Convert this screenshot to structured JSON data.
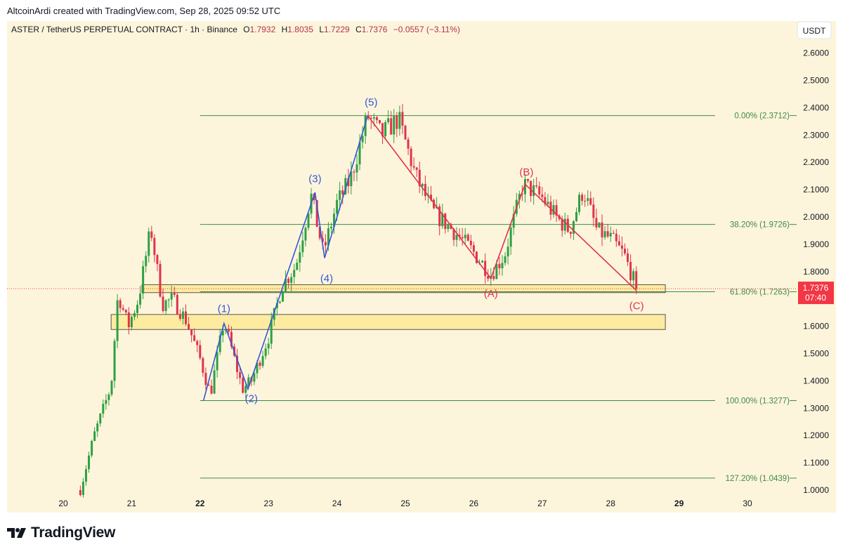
{
  "top_caption": "AltcoinArdi created with TradingView.com, Sep 28, 2025 09:52 UTC",
  "brand": "TradingView",
  "header": {
    "symbol": "ASTER / TetherUS PERPETUAL CONTRACT · 1h · Binance",
    "o_label": "O",
    "o": "1.7932",
    "h_label": "H",
    "h": "1.8035",
    "l_label": "L",
    "l": "1.7229",
    "c_label": "C",
    "c": "1.7376",
    "change": "−0.0557 (−3.11%)"
  },
  "currency_button": "USDT",
  "price_badge": {
    "price": "1.7376",
    "countdown": "07:40"
  },
  "colors": {
    "background": "#fdf5db",
    "up": "#2ea043",
    "down": "#e0334d",
    "impulse_wave": "#3457d5",
    "correction_wave": "#e0334d",
    "fib_line": "#3f8a4a",
    "zone_fill": "#fdeba0"
  },
  "chart_data": {
    "type": "candlestick",
    "x_ticks": [
      {
        "label": "20",
        "day": 20,
        "bold": false
      },
      {
        "label": "21",
        "day": 21,
        "bold": false
      },
      {
        "label": "22",
        "day": 22,
        "bold": true
      },
      {
        "label": "23",
        "day": 23,
        "bold": false
      },
      {
        "label": "24",
        "day": 24,
        "bold": false
      },
      {
        "label": "25",
        "day": 25,
        "bold": false
      },
      {
        "label": "26",
        "day": 26,
        "bold": false
      },
      {
        "label": "27",
        "day": 27,
        "bold": false
      },
      {
        "label": "28",
        "day": 28,
        "bold": false
      },
      {
        "label": "29",
        "day": 29,
        "bold": true
      },
      {
        "label": "30",
        "day": 30,
        "bold": false
      }
    ],
    "y_ticks": [
      "2.6000",
      "2.5000",
      "2.4000",
      "2.3000",
      "2.2000",
      "2.1000",
      "2.0000",
      "1.9000",
      "1.8000",
      "1.6000",
      "1.5000",
      "1.4000",
      "1.3000",
      "1.2000",
      "1.1000",
      "1.0000"
    ],
    "y_range": [
      0.99,
      2.68
    ],
    "current_price": 1.7376,
    "path_days": [
      20.25,
      20.45,
      20.7,
      20.8,
      20.95,
      21.1,
      21.28,
      21.45,
      21.6,
      21.8,
      22.0,
      22.15,
      22.35,
      22.5,
      22.62,
      22.75,
      23.0,
      23.2,
      23.4,
      23.62,
      23.8,
      24.0,
      24.2,
      24.45,
      24.65,
      24.9,
      25.15,
      25.4,
      25.7,
      26.0,
      26.25,
      26.45,
      26.72,
      27.0,
      27.2,
      27.4,
      27.6,
      27.8,
      28.0,
      28.2,
      28.38
    ],
    "path_prices": [
      1.0,
      1.2,
      1.38,
      1.72,
      1.6,
      1.7,
      1.96,
      1.68,
      1.7,
      1.62,
      1.48,
      1.35,
      1.62,
      1.48,
      1.37,
      1.4,
      1.56,
      1.75,
      1.82,
      2.08,
      1.87,
      2.05,
      2.14,
      2.37,
      2.3,
      2.36,
      2.15,
      2.02,
      1.95,
      1.87,
      1.79,
      1.86,
      2.12,
      2.07,
      2.0,
      1.95,
      2.1,
      1.95,
      1.92,
      1.86,
      1.74
    ],
    "impulse_wave": {
      "points": [
        {
          "day": 22.05,
          "price": 1.3277
        },
        {
          "day": 22.35,
          "price": 1.61
        },
        {
          "day": 22.7,
          "price": 1.37
        },
        {
          "day": 23.68,
          "price": 2.09
        },
        {
          "day": 23.82,
          "price": 1.85
        },
        {
          "day": 24.45,
          "price": 2.3712
        }
      ],
      "labels": [
        {
          "text": "(1)",
          "day": 22.35,
          "price": 1.665
        },
        {
          "text": "(2)",
          "day": 22.75,
          "price": 1.335
        },
        {
          "text": "(3)",
          "day": 23.68,
          "price": 2.14
        },
        {
          "text": "(4)",
          "day": 23.85,
          "price": 1.775
        },
        {
          "text": "(5)",
          "day": 24.5,
          "price": 2.42
        }
      ]
    },
    "correction_wave": {
      "points": [
        {
          "day": 24.45,
          "price": 2.3712
        },
        {
          "day": 26.25,
          "price": 1.775
        },
        {
          "day": 26.75,
          "price": 2.12
        },
        {
          "day": 28.38,
          "price": 1.73
        }
      ],
      "labels": [
        {
          "text": "(A)",
          "day": 26.25,
          "price": 1.72
        },
        {
          "text": "(B)",
          "day": 26.77,
          "price": 2.165
        },
        {
          "text": "(C)",
          "day": 28.38,
          "price": 1.675
        }
      ]
    },
    "fib_levels": [
      {
        "label": "0.00% (2.3712)",
        "price": 2.3712
      },
      {
        "label": "38.20% (1.9726)",
        "price": 1.9726
      },
      {
        "label": "61.80% (1.7263)",
        "price": 1.7263
      },
      {
        "label": "100.00% (1.3277)",
        "price": 1.3277
      },
      {
        "label": "127.20% (1.0439)",
        "price": 1.0439
      }
    ],
    "fib_start_day": 22.0,
    "zones": [
      {
        "day_from": 21.15,
        "day_to": 28.8,
        "top": 1.752,
        "bottom": 1.723
      },
      {
        "day_from": 20.7,
        "day_to": 28.8,
        "top": 1.643,
        "bottom": 1.588
      }
    ]
  }
}
